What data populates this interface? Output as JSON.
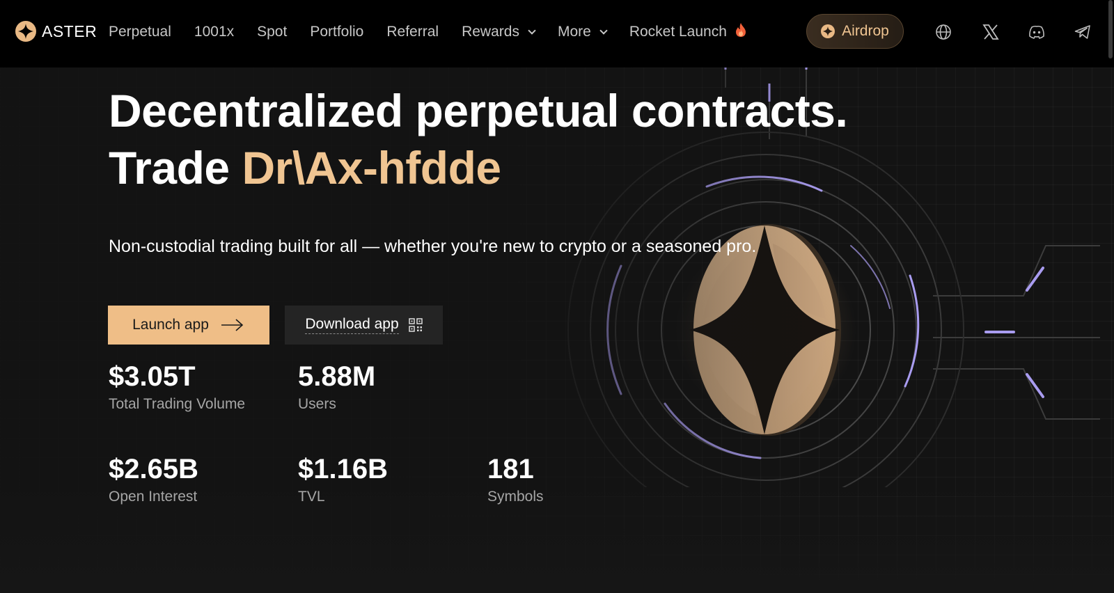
{
  "nav": {
    "brand": "ASTER",
    "links": [
      {
        "label": "Perpetual"
      },
      {
        "label": "1001x"
      },
      {
        "label": "Spot"
      },
      {
        "label": "Portfolio"
      },
      {
        "label": "Referral"
      },
      {
        "label": "Rewards",
        "has_dropdown": true
      },
      {
        "label": "More",
        "has_dropdown": true
      },
      {
        "label": "Rocket Launch",
        "icon": "flame-icon"
      }
    ],
    "airdrop_label": "Airdrop",
    "icons": [
      "globe-icon",
      "x-icon",
      "discord-icon",
      "telegram-icon"
    ]
  },
  "hero": {
    "title_line1": "Decentralized perpetual contracts.",
    "title_line2_prefix": "Trade ",
    "title_line2_accent": "Dr\\Ax-hfdde",
    "subtitle": "Non-custodial trading built for all — whether you're new to crypto or a seasoned pro."
  },
  "buttons": {
    "launch": "Launch app",
    "download": "Download app"
  },
  "stats": {
    "volume": {
      "value": "$3.05T",
      "label": "Total Trading Volume"
    },
    "users": {
      "value": "5.88M",
      "label": "Users"
    },
    "open_interest": {
      "value": "$2.65B",
      "label": "Open Interest"
    },
    "tvl": {
      "value": "$1.16B",
      "label": "TVL"
    },
    "symbols": {
      "value": "181",
      "label": "Symbols"
    }
  },
  "colors": {
    "accent": "#f0c592",
    "button": "#efbe87",
    "background": "#121212",
    "glow": "#a99cf0"
  }
}
